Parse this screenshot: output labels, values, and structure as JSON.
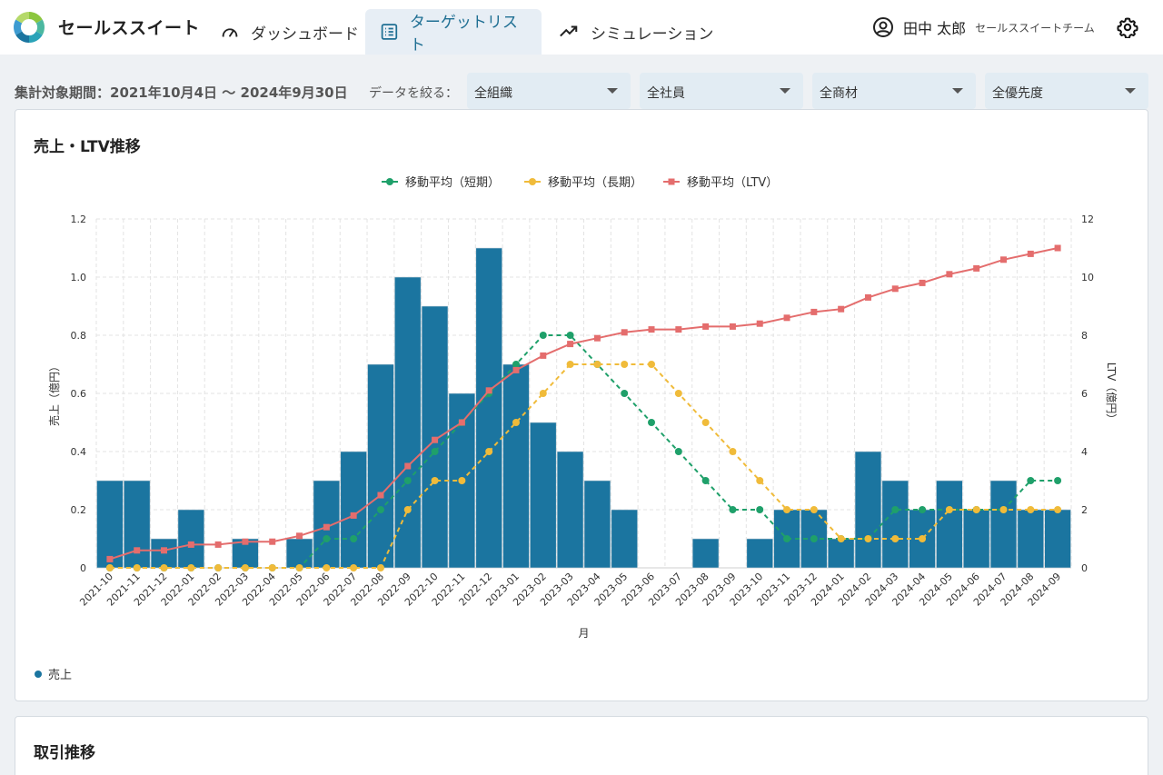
{
  "app": {
    "name": "セールススイート"
  },
  "nav": [
    {
      "label": "ダッシュボード",
      "active": false
    },
    {
      "label": "ターゲットリスト",
      "active": true
    },
    {
      "label": "シミュレーション",
      "active": false
    }
  ],
  "user": {
    "name": "田中 太郎",
    "team": "セールススイートチーム"
  },
  "filters": {
    "period": "集計対象期間：2021年10月4日 〜 2024年9月30日",
    "label": "データを絞る：",
    "selects": [
      "全組織",
      "全社員",
      "全商材",
      "全優先度"
    ]
  },
  "cards": {
    "sales_title": "売上・LTV推移",
    "deals_title": "取引推移"
  },
  "colors": {
    "bar": "#1b75a0",
    "short": "#1fa06a",
    "long": "#f0bb3a",
    "ltv": "#e46d6d",
    "accent": "#1f6f93"
  },
  "chart_data": {
    "type": "bar",
    "title": "売上・LTV推移",
    "xlabel": "月",
    "ylabel": "売上（億円）",
    "y2label": "LTV（億円）",
    "ylim": [
      0,
      1.2
    ],
    "y2lim": [
      0,
      12
    ],
    "yticks": [
      "0",
      "0.2",
      "0.4",
      "0.6",
      "0.8",
      "1.0",
      "1.2"
    ],
    "y2ticks": [
      "0",
      "2",
      "4",
      "6",
      "8",
      "10",
      "12"
    ],
    "grid": true,
    "legend_position": "top-center",
    "categories": [
      "2021-10",
      "2021-11",
      "2021-12",
      "2022-01",
      "2022-02",
      "2022-03",
      "2022-04",
      "2022-05",
      "2022-06",
      "2022-07",
      "2022-08",
      "2022-09",
      "2022-10",
      "2022-11",
      "2022-12",
      "2023-01",
      "2023-02",
      "2023-03",
      "2023-04",
      "2023-05",
      "2023-06",
      "2023-07",
      "2023-08",
      "2023-09",
      "2023-10",
      "2023-11",
      "2023-12",
      "2024-01",
      "2024-02",
      "2024-03",
      "2024-04",
      "2024-05",
      "2024-06",
      "2024-07",
      "2024-08",
      "2024-09"
    ],
    "series": [
      {
        "name": "売上",
        "type": "bar",
        "axis": "left",
        "values": [
          0.3,
          0.3,
          0.1,
          0.2,
          0,
          0.1,
          0,
          0.1,
          0.3,
          0.4,
          0.7,
          1.0,
          0.9,
          0.6,
          1.1,
          0.7,
          0.5,
          0.4,
          0.3,
          0.2,
          0,
          0,
          0.1,
          0,
          0.1,
          0.2,
          0.2,
          0.1,
          0.4,
          0.3,
          0.2,
          0.3,
          0.2,
          0.3,
          0.2,
          0.2
        ]
      },
      {
        "name": "移動平均（短期）",
        "type": "line",
        "axis": "left",
        "values": [
          0,
          0,
          0,
          0,
          0,
          0,
          0,
          0,
          0.1,
          0.1,
          0.2,
          0.3,
          0.4,
          0.5,
          0.6,
          0.7,
          0.8,
          0.8,
          0.7,
          0.6,
          0.5,
          0.4,
          0.3,
          0.2,
          0.2,
          0.1,
          0.1,
          0.1,
          0.1,
          0.2,
          0.2,
          0.2,
          0.2,
          0.2,
          0.3,
          0.3
        ]
      },
      {
        "name": "移動平均（長期）",
        "type": "line",
        "axis": "left",
        "values": [
          0,
          0,
          0,
          0,
          0,
          0,
          0,
          0,
          0,
          0,
          0,
          0.2,
          0.3,
          0.3,
          0.4,
          0.5,
          0.6,
          0.7,
          0.7,
          0.7,
          0.7,
          0.6,
          0.5,
          0.4,
          0.3,
          0.2,
          0.2,
          0.1,
          0.1,
          0.1,
          0.1,
          0.2,
          0.2,
          0.2,
          0.2,
          0.2
        ]
      },
      {
        "name": "移動平均（LTV）",
        "type": "line",
        "axis": "right",
        "values": [
          0.3,
          0.6,
          0.6,
          0.8,
          0.8,
          0.9,
          0.9,
          1.1,
          1.4,
          1.8,
          2.5,
          3.5,
          4.4,
          5.0,
          6.1,
          6.8,
          7.3,
          7.7,
          7.9,
          8.1,
          8.2,
          8.2,
          8.3,
          8.3,
          8.4,
          8.6,
          8.8,
          8.9,
          9.3,
          9.6,
          9.8,
          10.1,
          10.3,
          10.6,
          10.8,
          11.0
        ]
      }
    ]
  }
}
